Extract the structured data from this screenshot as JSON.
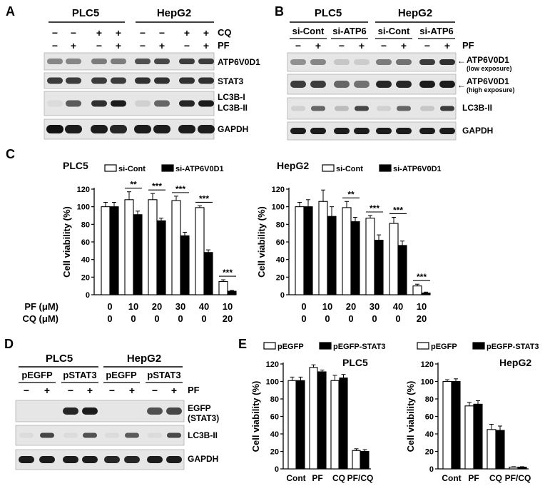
{
  "panel_a": {
    "letter": "A",
    "groups": [
      "PLC5",
      "HepG2"
    ],
    "cq_label": "CQ",
    "pf_label": "PF",
    "cq_signs": [
      "−",
      "−",
      "+",
      "+",
      "−",
      "−",
      "+",
      "+"
    ],
    "pf_signs": [
      "−",
      "+",
      "−",
      "+",
      "−",
      "+",
      "−",
      "+"
    ],
    "bands": [
      "ATP6V0D1",
      "STAT3",
      "LC3B-I",
      "LC3B-II",
      "GAPDH"
    ]
  },
  "panel_b": {
    "letter": "B",
    "groups": [
      "PLC5",
      "HepG2"
    ],
    "subgroups": [
      "si-Cont",
      "si-ATP6",
      "si-Cont",
      "si-ATP6"
    ],
    "pf_label": "PF",
    "pf_signs": [
      "−",
      "+",
      "−",
      "+",
      "−",
      "+",
      "−",
      "+"
    ],
    "bands": [
      {
        "name": "ATP6V0D1",
        "note": "(low exposure)"
      },
      {
        "name": "ATP6V0D1",
        "note": "(high exposure)"
      },
      {
        "name": "LC3B-II",
        "note": ""
      },
      {
        "name": "GAPDH",
        "note": ""
      }
    ]
  },
  "panel_c": {
    "letter": "C",
    "pf_row_label": "PF (μM)",
    "cq_row_label": "CQ (μM)",
    "pf_values": [
      "0",
      "10",
      "20",
      "30",
      "40",
      "10"
    ],
    "cq_values": [
      "0",
      "0",
      "0",
      "0",
      "0",
      "20"
    ]
  },
  "panel_d": {
    "letter": "D",
    "groups": [
      "PLC5",
      "HepG2"
    ],
    "subgroups": [
      "pEGFP",
      "pSTAT3",
      "pEGFP",
      "pSTAT3"
    ],
    "pf_label": "PF",
    "pf_signs": [
      "−",
      "+",
      "−",
      "+",
      "−",
      "+",
      "−",
      "+"
    ],
    "bands": [
      "EGFP",
      "(STAT3)",
      "LC3B-II",
      "GAPDH"
    ]
  },
  "panel_e": {
    "letter": "E"
  },
  "chart_data": [
    {
      "type": "bar",
      "title": "PLC5",
      "ylabel": "Cell viability (%)",
      "ylim": [
        0,
        120
      ],
      "yticks": [
        0,
        20,
        40,
        60,
        80,
        100,
        120
      ],
      "categories": [
        "0/0",
        "10/0",
        "20/0",
        "30/0",
        "40/0",
        "10/20"
      ],
      "series": [
        {
          "name": "si-Cont",
          "color": "#ffffff",
          "values": [
            100,
            108,
            108,
            107,
            99,
            15
          ],
          "errors": [
            5,
            9,
            7,
            5,
            2,
            2
          ]
        },
        {
          "name": "si-ATP6V0D1",
          "color": "#000000",
          "values": [
            100,
            91,
            84,
            67,
            48,
            4
          ],
          "errors": [
            5,
            4,
            3,
            4,
            3,
            1
          ]
        }
      ],
      "significance": [
        "",
        "**",
        "***",
        "***",
        "***",
        "***"
      ]
    },
    {
      "type": "bar",
      "title": "HepG2",
      "ylabel": "Cell viability (%)",
      "ylim": [
        0,
        120
      ],
      "yticks": [
        0,
        20,
        40,
        60,
        80,
        100,
        120
      ],
      "categories": [
        "0/0",
        "10/0",
        "20/0",
        "30/0",
        "40/0",
        "10/20"
      ],
      "series": [
        {
          "name": "si-Cont",
          "color": "#ffffff",
          "values": [
            100,
            106,
            99,
            87,
            81,
            10
          ],
          "errors": [
            5,
            13,
            7,
            3,
            7,
            2
          ]
        },
        {
          "name": "si-ATP6V0D1",
          "color": "#000000",
          "values": [
            100,
            89,
            83,
            62,
            56,
            2
          ],
          "errors": [
            8,
            11,
            5,
            6,
            5,
            1
          ]
        }
      ],
      "significance": [
        "",
        "",
        "**",
        "***",
        "***",
        "***"
      ]
    },
    {
      "type": "bar",
      "title": "PLC5",
      "ylabel": "Cell viability (%)",
      "ylim": [
        0,
        120
      ],
      "yticks": [
        0,
        20,
        40,
        60,
        80,
        100,
        120
      ],
      "categories": [
        "Cont",
        "PF",
        "CQ",
        "PF/CQ"
      ],
      "series": [
        {
          "name": "pEGFP",
          "color": "#ffffff",
          "values": [
            101,
            116,
            101,
            21
          ],
          "errors": [
            4,
            3,
            6,
            2
          ]
        },
        {
          "name": "pEGFP-STAT3",
          "color": "#000000",
          "values": [
            101,
            111,
            104,
            20
          ],
          "errors": [
            4,
            2,
            4,
            2
          ]
        }
      ]
    },
    {
      "type": "bar",
      "title": "HepG2",
      "ylabel": "Cell viability (%)",
      "ylim": [
        0,
        120
      ],
      "yticks": [
        0,
        20,
        40,
        60,
        80,
        100,
        120
      ],
      "categories": [
        "Cont",
        "PF",
        "CQ",
        "PF/CQ"
      ],
      "series": [
        {
          "name": "pEGFP",
          "color": "#ffffff",
          "values": [
            100,
            72,
            45,
            2
          ],
          "errors": [
            2,
            4,
            6,
            0.5
          ]
        },
        {
          "name": "pEGFP-STAT3",
          "color": "#000000",
          "values": [
            100,
            74,
            44,
            2
          ],
          "errors": [
            3,
            4,
            5,
            0.5
          ]
        }
      ]
    }
  ]
}
